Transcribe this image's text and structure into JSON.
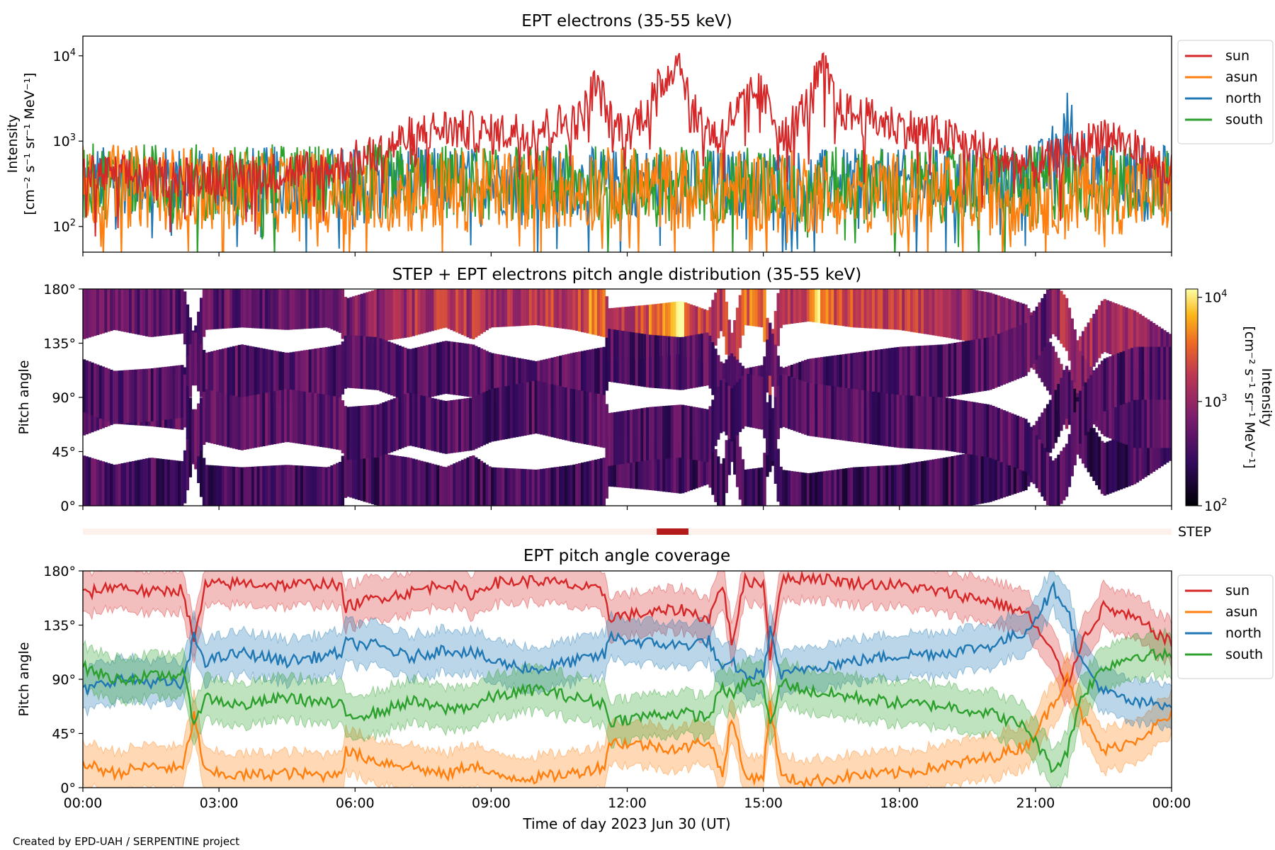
{
  "footer_credit": "Created by EPD-UAH / SERPENTINE project",
  "chart_data": [
    {
      "id": "intensity",
      "type": "line",
      "title": "EPT electrons (35-55 keV)",
      "ylabel_line1": "Intensity",
      "ylabel_line2": "[cm⁻² s⁻¹ sr⁻¹ MeV⁻¹]",
      "yscale": "log",
      "ylim": [
        50,
        17000
      ],
      "yticks": [
        {
          "value": 100,
          "base": "10",
          "exp": "2"
        },
        {
          "value": 1000,
          "base": "10",
          "exp": "3"
        },
        {
          "value": 10000,
          "base": "10",
          "exp": "4"
        }
      ],
      "x_hours": [
        0,
        24
      ],
      "legend_placement": "outside-right",
      "series": [
        {
          "name": "sun",
          "color": "#d62728",
          "key": [
            [
              0,
              400
            ],
            [
              2,
              380
            ],
            [
              4,
              420
            ],
            [
              5.5,
              480
            ],
            [
              6.5,
              700
            ],
            [
              7,
              1000
            ],
            [
              7.5,
              1300
            ],
            [
              8,
              1400
            ],
            [
              9,
              1200
            ],
            [
              10,
              1400
            ],
            [
              11,
              1800
            ],
            [
              11.3,
              4500
            ],
            [
              11.6,
              1800
            ],
            [
              12,
              1200
            ],
            [
              12.5,
              2600
            ],
            [
              12.9,
              6000
            ],
            [
              13.1,
              9500
            ],
            [
              13.4,
              2200
            ],
            [
              14,
              1000
            ],
            [
              14.5,
              2500
            ],
            [
              14.9,
              3800
            ],
            [
              15.2,
              2000
            ],
            [
              15.5,
              1200
            ],
            [
              16,
              2700
            ],
            [
              16.3,
              7000
            ],
            [
              16.6,
              2500
            ],
            [
              17,
              2000
            ],
            [
              18,
              1500
            ],
            [
              19,
              1100
            ],
            [
              20,
              700
            ],
            [
              21,
              480
            ],
            [
              22,
              800
            ],
            [
              22.5,
              1300
            ],
            [
              23,
              900
            ],
            [
              23.5,
              600
            ],
            [
              24,
              400
            ]
          ],
          "noise": 0.55,
          "floor": 60
        },
        {
          "name": "asun",
          "color": "#ff7f0e",
          "key": [
            [
              0,
              300
            ],
            [
              6,
              250
            ],
            [
              12,
              280
            ],
            [
              18,
              240
            ],
            [
              24,
              250
            ]
          ],
          "noise": 1.1,
          "floor": 45
        },
        {
          "name": "north",
          "color": "#1f77b4",
          "key": [
            [
              0,
              350
            ],
            [
              12,
              330
            ],
            [
              18,
              320
            ],
            [
              20,
              350
            ],
            [
              21.3,
              450
            ],
            [
              21.7,
              1600
            ],
            [
              22,
              700
            ],
            [
              22.5,
              400
            ],
            [
              24,
              350
            ]
          ],
          "noise": 0.9,
          "floor": 45
        },
        {
          "name": "south",
          "color": "#2ca02c",
          "key": [
            [
              0,
              340
            ],
            [
              12,
              320
            ],
            [
              18,
              300
            ],
            [
              24,
              340
            ]
          ],
          "noise": 1.0,
          "floor": 45
        }
      ]
    },
    {
      "id": "pad",
      "type": "heatmap",
      "title": "STEP + EPT electrons pitch angle distribution (35-55 keV)",
      "ylabel": "Pitch angle",
      "ylim": [
        0,
        180
      ],
      "yticks": [
        "0°",
        "45°",
        "90°",
        "135°",
        "180°"
      ],
      "colorbar": {
        "label_line1": "Intensity",
        "label_line2": "[cm⁻² s⁻¹ sr⁻¹ MeV⁻¹]",
        "scale": "log",
        "range": [
          100,
          12000
        ],
        "colormap": "inferno",
        "ticks": [
          {
            "value": 100,
            "base": "10",
            "exp": "2"
          },
          {
            "value": 1000,
            "base": "10",
            "exp": "3"
          },
          {
            "value": 10000,
            "base": "10",
            "exp": "4"
          }
        ]
      }
    },
    {
      "id": "step",
      "type": "bar",
      "label": "STEP",
      "background_color": "#fdf1ec",
      "active_color": "#b31b1b",
      "active_hours": [
        12.65,
        13.35
      ]
    },
    {
      "id": "coverage",
      "type": "area",
      "title": "EPT pitch angle coverage",
      "ylabel": "Pitch angle",
      "ylim": [
        0,
        180
      ],
      "yticks": [
        "0°",
        "45°",
        "90°",
        "135°",
        "180°"
      ],
      "xlabel": "Time of day 2023 Jun 30 (UT)",
      "xticks": [
        "00:00",
        "03:00",
        "06:00",
        "09:00",
        "12:00",
        "15:00",
        "18:00",
        "21:00",
        "00:00"
      ],
      "legend_placement": "outside-right",
      "band_halfwidth_deg": 18,
      "series": [
        {
          "name": "sun",
          "color": "#d62728",
          "key": [
            [
              0,
              160
            ],
            [
              0.7,
              168
            ],
            [
              1.5,
              162
            ],
            [
              2.2,
              165
            ],
            [
              2.45,
              120
            ],
            [
              2.7,
              168
            ],
            [
              3.5,
              170
            ],
            [
              4.5,
              168
            ],
            [
              5.4,
              170
            ],
            [
              5.7,
              165
            ],
            [
              5.8,
              150
            ],
            [
              6.5,
              158
            ],
            [
              7.2,
              162
            ],
            [
              8,
              170
            ],
            [
              8.6,
              160
            ],
            [
              9,
              170
            ],
            [
              10,
              172
            ],
            [
              10.8,
              168
            ],
            [
              11.5,
              162
            ],
            [
              11.6,
              142
            ],
            [
              12.5,
              145
            ],
            [
              13.2,
              148
            ],
            [
              13.8,
              140
            ],
            [
              14.1,
              170
            ],
            [
              14.3,
              120
            ],
            [
              14.6,
              172
            ],
            [
              15,
              170
            ],
            [
              15.15,
              110
            ],
            [
              15.4,
              172
            ],
            [
              16,
              175
            ],
            [
              17,
              170
            ],
            [
              18,
              168
            ],
            [
              19,
              162
            ],
            [
              20,
              155
            ],
            [
              20.8,
              145
            ],
            [
              21.4,
              110
            ],
            [
              21.7,
              85
            ],
            [
              22,
              120
            ],
            [
              22.5,
              150
            ],
            [
              23.2,
              140
            ],
            [
              24,
              120
            ]
          ]
        },
        {
          "name": "asun",
          "color": "#ff7f0e",
          "key": [
            [
              0,
              20
            ],
            [
              0.7,
              12
            ],
            [
              1.5,
              18
            ],
            [
              2.2,
              15
            ],
            [
              2.45,
              60
            ],
            [
              2.7,
              12
            ],
            [
              3.5,
              10
            ],
            [
              4.5,
              12
            ],
            [
              5.4,
              10
            ],
            [
              5.7,
              15
            ],
            [
              5.8,
              30
            ],
            [
              6.5,
              22
            ],
            [
              7.2,
              18
            ],
            [
              8,
              10
            ],
            [
              8.6,
              20
            ],
            [
              9,
              10
            ],
            [
              10,
              8
            ],
            [
              10.8,
              12
            ],
            [
              11.5,
              18
            ],
            [
              11.6,
              38
            ],
            [
              12.5,
              35
            ],
            [
              13.2,
              32
            ],
            [
              13.8,
              40
            ],
            [
              14.1,
              10
            ],
            [
              14.3,
              60
            ],
            [
              14.6,
              8
            ],
            [
              15,
              10
            ],
            [
              15.15,
              70
            ],
            [
              15.4,
              8
            ],
            [
              16,
              5
            ],
            [
              17,
              10
            ],
            [
              18,
              12
            ],
            [
              19,
              18
            ],
            [
              20,
              25
            ],
            [
              20.8,
              35
            ],
            [
              21.4,
              70
            ],
            [
              21.7,
              95
            ],
            [
              22,
              60
            ],
            [
              22.5,
              30
            ],
            [
              23.2,
              40
            ],
            [
              24,
              60
            ]
          ]
        },
        {
          "name": "north",
          "color": "#1f77b4",
          "key": [
            [
              0,
              80
            ],
            [
              0.7,
              90
            ],
            [
              1.5,
              88
            ],
            [
              2.2,
              85
            ],
            [
              2.45,
              125
            ],
            [
              2.7,
              105
            ],
            [
              3.5,
              112
            ],
            [
              4.5,
              105
            ],
            [
              5.4,
              110
            ],
            [
              5.7,
              112
            ],
            [
              5.8,
              120
            ],
            [
              6.5,
              118
            ],
            [
              7.2,
              108
            ],
            [
              8,
              115
            ],
            [
              8.6,
              112
            ],
            [
              9,
              105
            ],
            [
              10,
              98
            ],
            [
              10.8,
              105
            ],
            [
              11.5,
              110
            ],
            [
              11.6,
              125
            ],
            [
              12.5,
              120
            ],
            [
              13.2,
              118
            ],
            [
              13.8,
              122
            ],
            [
              14.1,
              95
            ],
            [
              14.3,
              105
            ],
            [
              14.6,
              92
            ],
            [
              15,
              95
            ],
            [
              15.15,
              130
            ],
            [
              15.4,
              92
            ],
            [
              16,
              100
            ],
            [
              17,
              105
            ],
            [
              18,
              110
            ],
            [
              19,
              112
            ],
            [
              20,
              118
            ],
            [
              20.8,
              130
            ],
            [
              21.4,
              165
            ],
            [
              21.7,
              150
            ],
            [
              22,
              105
            ],
            [
              22.5,
              80
            ],
            [
              23.2,
              70
            ],
            [
              24,
              70
            ]
          ]
        },
        {
          "name": "south",
          "color": "#2ca02c",
          "key": [
            [
              0,
              100
            ],
            [
              0.7,
              90
            ],
            [
              1.5,
              92
            ],
            [
              2.2,
              95
            ],
            [
              2.45,
              55
            ],
            [
              2.7,
              75
            ],
            [
              3.5,
              68
            ],
            [
              4.5,
              75
            ],
            [
              5.4,
              70
            ],
            [
              5.7,
              68
            ],
            [
              5.8,
              60
            ],
            [
              6.5,
              62
            ],
            [
              7.2,
              72
            ],
            [
              8,
              65
            ],
            [
              8.6,
              68
            ],
            [
              9,
              75
            ],
            [
              10,
              82
            ],
            [
              10.8,
              75
            ],
            [
              11.5,
              70
            ],
            [
              11.6,
              55
            ],
            [
              12.5,
              60
            ],
            [
              13.2,
              62
            ],
            [
              13.8,
              58
            ],
            [
              14.1,
              85
            ],
            [
              14.3,
              75
            ],
            [
              14.6,
              88
            ],
            [
              15,
              85
            ],
            [
              15.15,
              50
            ],
            [
              15.4,
              88
            ],
            [
              16,
              80
            ],
            [
              17,
              75
            ],
            [
              18,
              70
            ],
            [
              19,
              68
            ],
            [
              20,
              62
            ],
            [
              20.8,
              50
            ],
            [
              21.4,
              15
            ],
            [
              21.7,
              30
            ],
            [
              22,
              75
            ],
            [
              22.5,
              100
            ],
            [
              23.2,
              110
            ],
            [
              24,
              110
            ]
          ]
        }
      ]
    }
  ]
}
